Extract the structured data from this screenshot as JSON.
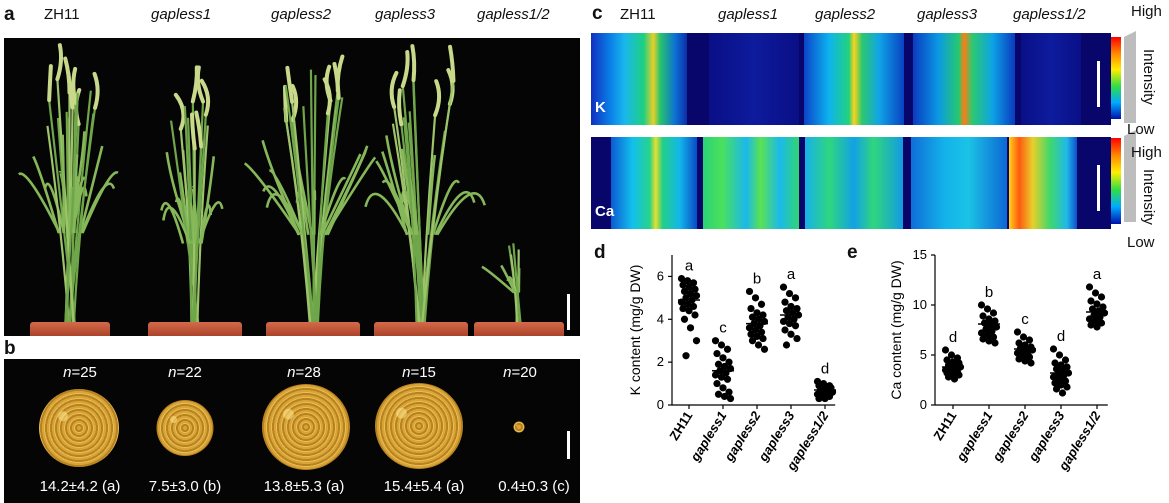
{
  "panels": {
    "a": "a",
    "b": "b",
    "c": "c",
    "d": "d",
    "e": "e"
  },
  "genotypes": [
    "ZH11",
    "gapless1",
    "gapless2",
    "gapless3",
    "gapless1/2"
  ],
  "panel_b": {
    "counts": [
      "=25",
      "=22",
      "=28",
      "=15",
      "=20"
    ],
    "n_prefix": "n",
    "yields": [
      "14.2±4.2 (a)",
      "7.5±3.0 (b)",
      "13.8±5.3 (a)",
      "15.4±5.4 (a)",
      "0.4±0.3 (c)"
    ]
  },
  "panel_c": {
    "k_label": "K",
    "ca_label": "Ca",
    "high": "High",
    "low": "Low",
    "intensity": "Intensity"
  },
  "colors": {
    "heat_high": "#ff0000",
    "heat_low": "#0011aa",
    "pot": "#c45535",
    "grain": "#d9a437"
  },
  "chart_data": [
    {
      "type": "scatter",
      "panel": "d",
      "ylabel": "K content (mg/g DW)",
      "ylim": [
        0,
        7
      ],
      "yticks": [
        0,
        2,
        4,
        6
      ],
      "categories": [
        "ZH11",
        "gapless1",
        "gapless2",
        "gapless3",
        "gapless1/2"
      ],
      "means": [
        4.9,
        1.6,
        3.8,
        4.2,
        0.7
      ],
      "letters": [
        "a",
        "c",
        "b",
        "a",
        "d"
      ],
      "points": [
        [
          5.9,
          5.8,
          5.7,
          5.6,
          5.5,
          5.4,
          5.3,
          5.2,
          5.1,
          5.0,
          4.9,
          4.8,
          4.7,
          4.6,
          4.5,
          4.4,
          4.2,
          4.0,
          3.6,
          3.0,
          2.3
        ],
        [
          3.0,
          2.8,
          2.6,
          2.4,
          2.2,
          2.0,
          1.9,
          1.8,
          1.7,
          1.6,
          1.5,
          1.4,
          1.3,
          1.2,
          1.0,
          0.8,
          0.6,
          0.5,
          0.4,
          0.3
        ],
        [
          5.3,
          5.0,
          4.7,
          4.5,
          4.3,
          4.2,
          4.1,
          4.0,
          3.9,
          3.8,
          3.7,
          3.6,
          3.5,
          3.4,
          3.3,
          3.2,
          3.1,
          3.0,
          2.8,
          2.6
        ],
        [
          5.5,
          5.2,
          5.0,
          4.8,
          4.6,
          4.5,
          4.4,
          4.3,
          4.2,
          4.1,
          4.0,
          3.9,
          3.8,
          3.7,
          3.5,
          3.3,
          3.1,
          2.8
        ],
        [
          1.1,
          1.0,
          0.9,
          0.9,
          0.8,
          0.8,
          0.7,
          0.7,
          0.6,
          0.6,
          0.5,
          0.5,
          0.4,
          0.4,
          0.3,
          0.3
        ]
      ]
    },
    {
      "type": "scatter",
      "panel": "e",
      "ylabel": "Ca content (mg/g DW)",
      "ylim": [
        0,
        15
      ],
      "yticks": [
        0,
        5,
        10,
        15
      ],
      "categories": [
        "ZH11",
        "gapless1",
        "gapless2",
        "gapless3",
        "gapless1/2"
      ],
      "means": [
        3.8,
        8.1,
        5.6,
        3.2,
        9.3
      ],
      "letters": [
        "d",
        "b",
        "c",
        "d",
        "a"
      ],
      "points": [
        [
          5.5,
          5.0,
          4.7,
          4.5,
          4.3,
          4.2,
          4.0,
          3.9,
          3.8,
          3.7,
          3.6,
          3.5,
          3.4,
          3.3,
          3.2,
          3.1,
          3.0,
          2.8,
          2.6
        ],
        [
          10.0,
          9.6,
          9.2,
          8.9,
          8.6,
          8.4,
          8.2,
          8.0,
          7.8,
          7.6,
          7.4,
          7.2,
          7.0,
          6.8,
          6.6,
          6.4,
          6.2
        ],
        [
          7.3,
          6.8,
          6.5,
          6.2,
          6.0,
          5.8,
          5.7,
          5.6,
          5.5,
          5.4,
          5.3,
          5.2,
          5.0,
          4.8,
          4.6,
          4.4,
          4.2
        ],
        [
          5.6,
          5.0,
          4.5,
          4.2,
          4.0,
          3.8,
          3.6,
          3.4,
          3.2,
          3.1,
          3.0,
          2.8,
          2.6,
          2.4,
          2.2,
          2.0,
          1.8,
          1.6,
          1.2
        ],
        [
          11.8,
          11.2,
          10.8,
          10.4,
          10.1,
          9.8,
          9.6,
          9.4,
          9.2,
          9.0,
          8.8,
          8.6,
          8.4,
          8.2,
          8.0,
          7.8
        ]
      ]
    }
  ]
}
